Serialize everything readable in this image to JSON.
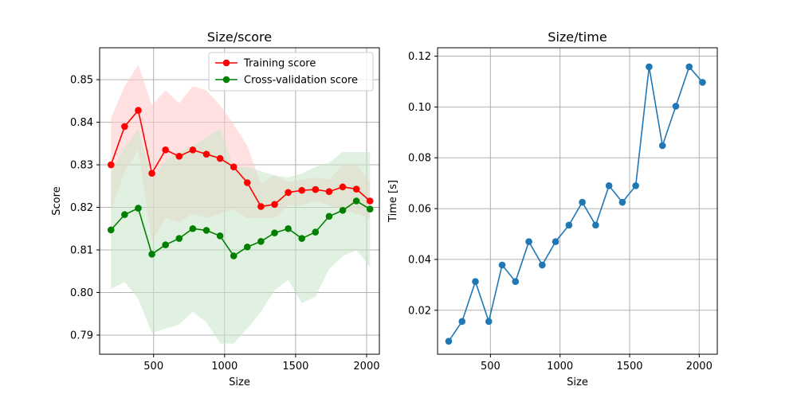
{
  "chart_data": [
    {
      "type": "line",
      "title": "Size/score",
      "xlabel": "Size",
      "ylabel": "Score",
      "xlim": [
        120,
        2090
      ],
      "ylim": [
        0.7855,
        0.8575
      ],
      "xticks": [
        500,
        1000,
        1500,
        2000
      ],
      "xtick_labels": [
        "500",
        "1000",
        "1500",
        "2000"
      ],
      "yticks": [
        0.79,
        0.8,
        0.81,
        0.82,
        0.83,
        0.84,
        0.85
      ],
      "ytick_labels": [
        "0.79",
        "0.80",
        "0.81",
        "0.82",
        "0.83",
        "0.84",
        "0.85"
      ],
      "grid": true,
      "legend": "top-right",
      "x": [
        200,
        296,
        392,
        488,
        584,
        680,
        776,
        872,
        968,
        1064,
        1160,
        1256,
        1352,
        1448,
        1544,
        1640,
        1736,
        1832,
        1928,
        2024
      ],
      "series": [
        {
          "name": "Training score",
          "color": "#ff0000",
          "band_color": "#ffc8c8",
          "values": [
            0.83,
            0.839,
            0.8428,
            0.828,
            0.8335,
            0.832,
            0.8335,
            0.8325,
            0.8315,
            0.8295,
            0.8258,
            0.8202,
            0.8207,
            0.8235,
            0.824,
            0.8242,
            0.8237,
            0.8248,
            0.8243,
            0.8215
          ],
          "lower": [
            0.819,
            0.8285,
            0.8335,
            0.812,
            0.8175,
            0.8165,
            0.8185,
            0.8175,
            0.8185,
            0.8195,
            0.8175,
            0.8175,
            0.8175,
            0.8205,
            0.8205,
            0.8215,
            0.8205,
            0.8195,
            0.8185,
            0.8175
          ],
          "upper": [
            0.841,
            0.8485,
            0.8535,
            0.844,
            0.8475,
            0.8445,
            0.8485,
            0.8475,
            0.844,
            0.8395,
            0.8345,
            0.8255,
            0.8275,
            0.826,
            0.8265,
            0.827,
            0.8265,
            0.83,
            0.83,
            0.826
          ]
        },
        {
          "name": "Cross-validation score",
          "color": "#008000",
          "band_color": "#c8e6c8",
          "values": [
            0.8147,
            0.8183,
            0.8198,
            0.809,
            0.8112,
            0.8127,
            0.815,
            0.8146,
            0.8133,
            0.8086,
            0.8107,
            0.812,
            0.814,
            0.815,
            0.8127,
            0.8142,
            0.8179,
            0.8193,
            0.8215,
            0.8196
          ],
          "lower": [
            0.8008,
            0.8025,
            0.7985,
            0.7905,
            0.7915,
            0.7925,
            0.7955,
            0.793,
            0.788,
            0.788,
            0.7915,
            0.7955,
            0.8005,
            0.803,
            0.7975,
            0.799,
            0.8055,
            0.8085,
            0.81,
            0.806
          ],
          "upper": [
            0.8285,
            0.834,
            0.8385,
            0.8265,
            0.831,
            0.833,
            0.8345,
            0.8365,
            0.8385,
            0.8295,
            0.8295,
            0.8285,
            0.8275,
            0.827,
            0.828,
            0.8295,
            0.8305,
            0.833,
            0.833,
            0.833
          ]
        }
      ]
    },
    {
      "type": "line",
      "title": "Size/time",
      "xlabel": "Size",
      "ylabel": "Time [s]",
      "xlim": [
        120,
        2130
      ],
      "ylim": [
        0.0027,
        0.1233
      ],
      "xticks": [
        500,
        1000,
        1500,
        2000
      ],
      "xtick_labels": [
        "500",
        "1000",
        "1500",
        "2000"
      ],
      "yticks": [
        0.02,
        0.04,
        0.06,
        0.08,
        0.1,
        0.12
      ],
      "ytick_labels": [
        "0.02",
        "0.04",
        "0.06",
        "0.08",
        "0.10",
        "0.12"
      ],
      "grid": true,
      "x": [
        200,
        296,
        392,
        488,
        584,
        680,
        776,
        872,
        968,
        1064,
        1160,
        1256,
        1352,
        1448,
        1544,
        1640,
        1736,
        1832,
        1928,
        2024
      ],
      "series": [
        {
          "color": "#1f77b4",
          "values": [
            0.0078,
            0.0156,
            0.0313,
            0.0156,
            0.0378,
            0.0313,
            0.047,
            0.0378,
            0.047,
            0.0535,
            0.0625,
            0.0535,
            0.069,
            0.0625,
            0.069,
            0.1158,
            0.0848,
            0.1003,
            0.1158,
            0.1097
          ]
        }
      ]
    }
  ]
}
